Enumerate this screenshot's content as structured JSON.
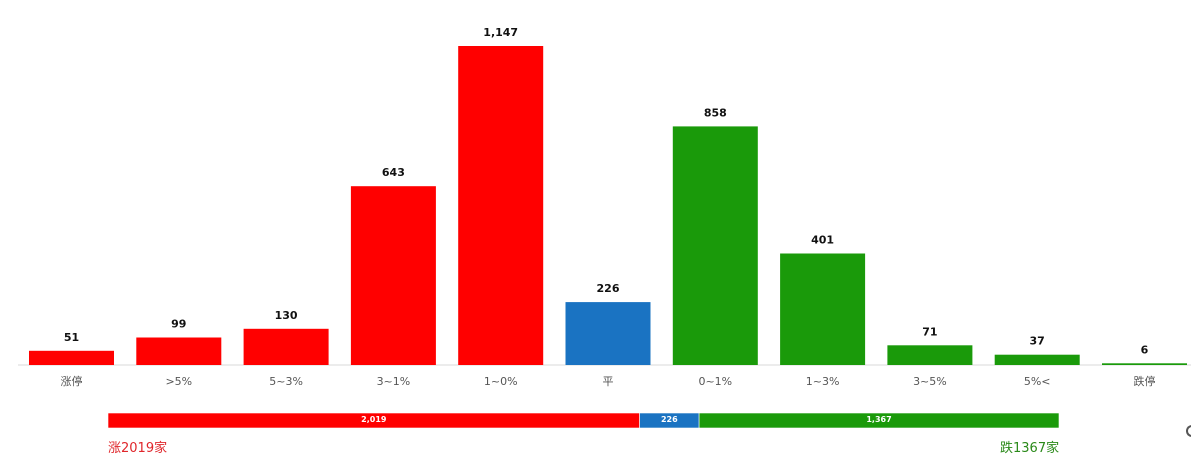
{
  "chart_data": {
    "type": "bar",
    "categories": [
      "涨停",
      ">5%",
      "5~3%",
      "3~1%",
      "1~0%",
      "平",
      "0~1%",
      "1~3%",
      "3~5%",
      "5%<",
      "跌停"
    ],
    "values": [
      51,
      99,
      130,
      643,
      1147,
      226,
      858,
      401,
      71,
      37,
      6
    ],
    "value_labels": [
      "51",
      "99",
      "130",
      "643",
      "1,147",
      "226",
      "858",
      "401",
      "71",
      "37",
      "6"
    ],
    "bar_colors": [
      "#ff0000",
      "#ff0000",
      "#ff0000",
      "#ff0000",
      "#ff0000",
      "#1a73c2",
      "#1a9a0a",
      "#1a9a0a",
      "#1a9a0a",
      "#1a9a0a",
      "#1a9a0a"
    ],
    "ylim": [
      0,
      1147
    ],
    "grid": false,
    "legend": "none",
    "summary_bar": {
      "segments": [
        {
          "value": 2019,
          "label": "2,019",
          "color": "#ff0000"
        },
        {
          "value": 226,
          "label": "226",
          "color": "#1a73c2"
        },
        {
          "value": 1367,
          "label": "1,367",
          "color": "#1a9a0a"
        }
      ]
    }
  },
  "summary": {
    "up_text": "涨2019家",
    "down_text": "跌1367家"
  }
}
